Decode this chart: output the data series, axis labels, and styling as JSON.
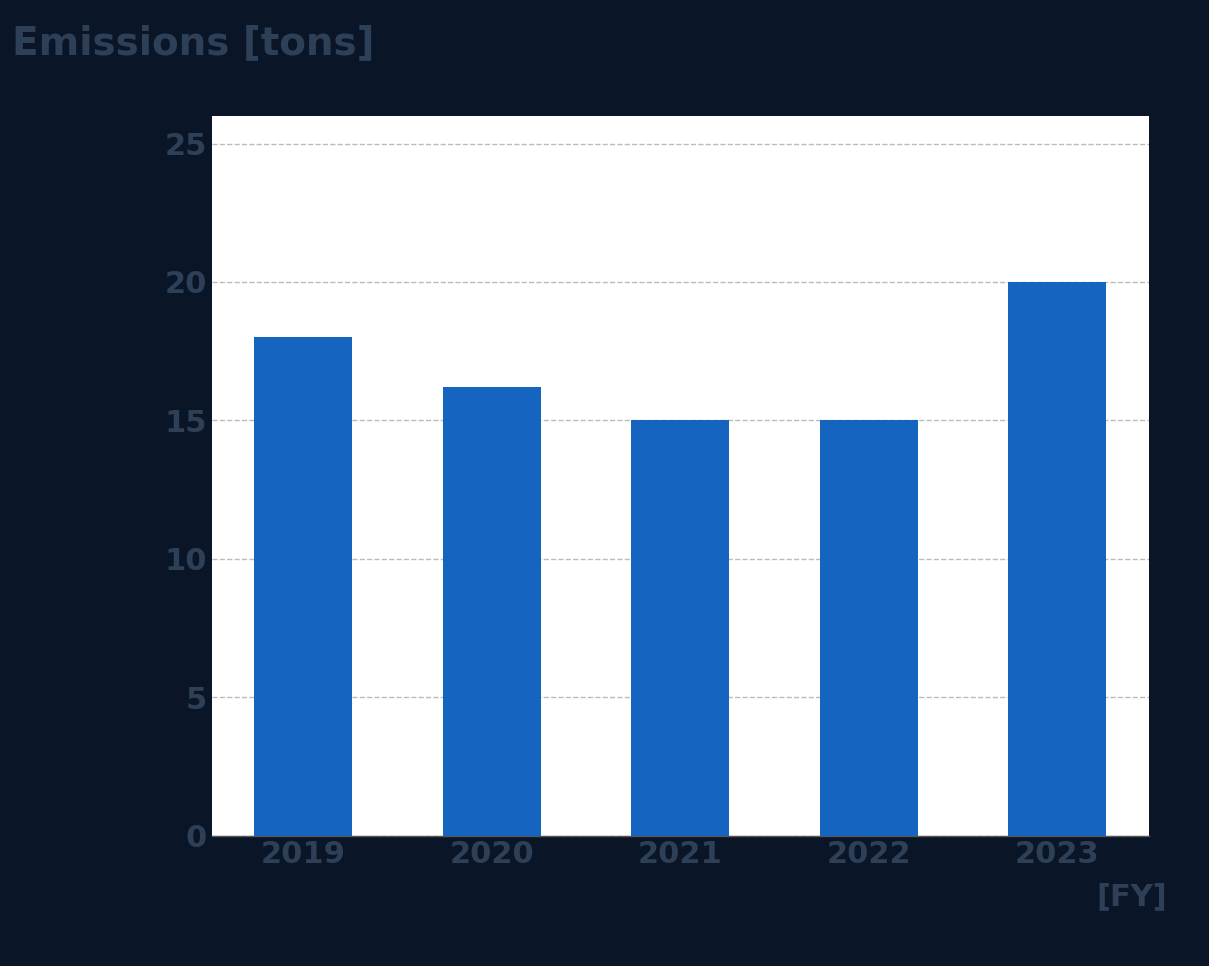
{
  "categories": [
    "2019",
    "2020",
    "2021",
    "2022",
    "2023"
  ],
  "values": [
    18.0,
    16.2,
    15.0,
    15.0,
    20.0
  ],
  "bar_color": "#1565C0",
  "ylabel": "Emissions [tons]",
  "xlabel_suffix": "[FY]",
  "ylim": [
    0,
    26
  ],
  "yticks": [
    0,
    5,
    10,
    15,
    20,
    25
  ],
  "background_color": "#ffffff",
  "outer_background": "#0a1628",
  "ylabel_fontsize": 28,
  "tick_fontsize": 22,
  "xlabel_fontsize": 22,
  "axis_label_color": "#2e4057",
  "grid_color": "#bbbbbb",
  "bar_width": 0.52
}
